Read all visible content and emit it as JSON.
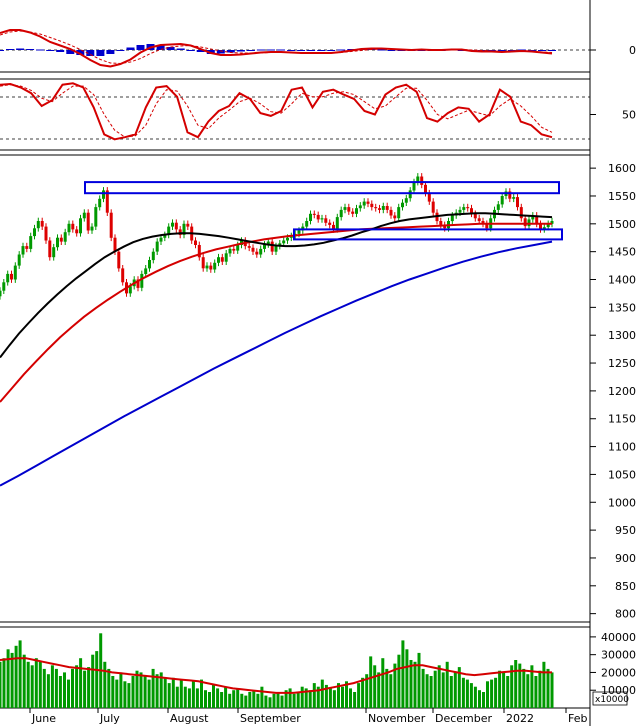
{
  "chart_data": [
    {
      "panel": "macd",
      "type": "line",
      "series": [
        {
          "role": "macd_line",
          "color": "#d40000"
        },
        {
          "role": "signal_line",
          "color": "#d40000",
          "dash": true
        },
        {
          "role": "histogram",
          "color": "#0000cc"
        }
      ],
      "ylim": [
        -40,
        40
      ],
      "reference_line": 0,
      "y_ticks": [
        "0"
      ],
      "macd_pts": [
        34,
        40,
        40,
        35,
        27,
        16,
        9,
        2,
        -8,
        -20,
        -30,
        -33,
        -28,
        -19,
        -5,
        5,
        10,
        11,
        12,
        9,
        2,
        -6,
        -10,
        -10,
        -9,
        -7,
        -5,
        -4,
        -4,
        -5,
        -6,
        -6,
        -6,
        -6,
        -4,
        -1,
        2,
        3,
        3,
        2,
        1,
        0,
        1,
        0,
        0,
        1,
        1,
        -2,
        -3,
        -3,
        -4,
        -3,
        -2,
        -3,
        -5,
        -7
      ],
      "signal_pts": [
        30,
        36,
        38,
        36,
        32,
        25,
        18,
        10,
        1,
        -9,
        -19,
        -26,
        -27,
        -24,
        -17,
        -7,
        1,
        6,
        8,
        9,
        6,
        2,
        -2,
        -5,
        -6,
        -6,
        -6,
        -5,
        -5,
        -5,
        -5,
        -6,
        -6,
        -6,
        -5,
        -3,
        -1,
        1,
        2,
        2,
        1,
        1,
        1,
        1,
        0,
        0,
        1,
        0,
        -1,
        -2,
        -3,
        -3,
        -3,
        -3,
        -4,
        -5
      ],
      "hist_pts": [
        0,
        2,
        3,
        2,
        1,
        -2,
        -4,
        -8,
        -10,
        -12,
        -12,
        -8,
        -2,
        5,
        10,
        12,
        10,
        6,
        3,
        -1,
        -4,
        -8,
        -7,
        -5,
        -3,
        -1,
        1,
        1,
        1,
        0,
        -1,
        0,
        0,
        -1,
        1,
        2,
        3,
        2,
        1,
        0,
        0,
        -1,
        0,
        -1,
        0,
        1,
        0,
        -2,
        -2,
        -1,
        -1,
        0,
        1,
        0,
        -1,
        -2
      ]
    },
    {
      "panel": "stochastic",
      "type": "line",
      "series": [
        {
          "role": "k_line",
          "color": "#d40000"
        },
        {
          "role": "d_line",
          "color": "#d40000",
          "dash": true
        }
      ],
      "ylim": [
        0,
        100
      ],
      "reference_lines": [
        20,
        80
      ],
      "y_ticks": [
        "50"
      ],
      "k_pts": [
        92,
        93,
        88,
        80,
        62,
        70,
        92,
        94,
        88,
        60,
        22,
        15,
        18,
        22,
        60,
        88,
        90,
        75,
        25,
        18,
        40,
        55,
        62,
        80,
        72,
        52,
        48,
        55,
        85,
        88,
        60,
        82,
        85,
        78,
        72,
        55,
        50,
        78,
        88,
        92,
        82,
        45,
        40,
        52,
        60,
        58,
        40,
        50,
        85,
        75,
        40,
        35,
        22,
        18
      ],
      "d_pts": [
        90,
        92,
        90,
        84,
        73,
        68,
        80,
        90,
        90,
        78,
        50,
        28,
        18,
        20,
        35,
        65,
        85,
        83,
        62,
        35,
        30,
        45,
        56,
        68,
        73,
        65,
        54,
        52,
        65,
        80,
        75,
        75,
        80,
        82,
        78,
        68,
        58,
        62,
        75,
        87,
        87,
        70,
        50,
        44,
        50,
        56,
        52,
        48,
        62,
        72,
        62,
        48,
        32,
        25
      ]
    },
    {
      "panel": "price",
      "type": "candlestick",
      "ylim": [
        785,
        1620
      ],
      "y_ticks": [
        800,
        850,
        900,
        950,
        1000,
        1050,
        1100,
        1150,
        1200,
        1250,
        1300,
        1350,
        1400,
        1450,
        1500,
        1550,
        1600
      ],
      "close": [
        1380,
        1395,
        1410,
        1400,
        1425,
        1445,
        1460,
        1455,
        1478,
        1492,
        1505,
        1495,
        1470,
        1440,
        1458,
        1475,
        1468,
        1485,
        1500,
        1490,
        1483,
        1510,
        1520,
        1488,
        1495,
        1530,
        1545,
        1560,
        1520,
        1475,
        1450,
        1420,
        1395,
        1375,
        1388,
        1400,
        1385,
        1410,
        1420,
        1435,
        1450,
        1468,
        1475,
        1480,
        1495,
        1502,
        1490,
        1480,
        1500,
        1495,
        1470,
        1462,
        1440,
        1420,
        1425,
        1418,
        1430,
        1440,
        1432,
        1447,
        1455,
        1452,
        1462,
        1470,
        1460,
        1457,
        1450,
        1445,
        1455,
        1463,
        1468,
        1450,
        1460,
        1465,
        1470,
        1475,
        1478,
        1482,
        1488,
        1495,
        1505,
        1518,
        1516,
        1508,
        1510,
        1502,
        1498,
        1490,
        1512,
        1525,
        1530,
        1522,
        1518,
        1528,
        1533,
        1540,
        1536,
        1530,
        1528,
        1525,
        1532,
        1525,
        1515,
        1510,
        1530,
        1538,
        1546,
        1560,
        1575,
        1585,
        1570,
        1555,
        1540,
        1520,
        1505,
        1498,
        1492,
        1505,
        1515,
        1520,
        1525,
        1530,
        1528,
        1518,
        1510,
        1505,
        1500,
        1492,
        1510,
        1525,
        1535,
        1550,
        1558,
        1545,
        1548,
        1530,
        1510,
        1496,
        1508,
        1515,
        1500,
        1490,
        1494,
        1500,
        1505
      ],
      "ma_black": [
        1260,
        1282,
        1303,
        1322,
        1340,
        1357,
        1373,
        1388,
        1402,
        1415,
        1428,
        1440,
        1450,
        1459,
        1467,
        1473,
        1477,
        1480,
        1482,
        1483,
        1483,
        1482,
        1480,
        1478,
        1475,
        1472,
        1469,
        1466,
        1463,
        1461,
        1460,
        1460,
        1461,
        1463,
        1466,
        1470,
        1474,
        1479,
        1485,
        1490,
        1496,
        1501,
        1505,
        1508,
        1510,
        1512,
        1514,
        1516,
        1517,
        1518,
        1519,
        1519,
        1518,
        1517,
        1516,
        1515,
        1514,
        1513,
        1512
      ],
      "ma_red": [
        1180,
        1205,
        1230,
        1253,
        1275,
        1296,
        1315,
        1333,
        1349,
        1364,
        1378,
        1391,
        1403,
        1414,
        1424,
        1433,
        1441,
        1448,
        1454,
        1459,
        1464,
        1468,
        1472,
        1475,
        1478,
        1480,
        1482,
        1484,
        1486,
        1488,
        1490,
        1491,
        1492,
        1493,
        1494,
        1495,
        1496,
        1497,
        1498,
        1499,
        1500,
        1500,
        1500,
        1500,
        1500,
        1500,
        1500
      ],
      "ma_blue": [
        1030,
        1047,
        1065,
        1083,
        1101,
        1119,
        1137,
        1155,
        1172,
        1189,
        1206,
        1223,
        1240,
        1256,
        1272,
        1288,
        1304,
        1319,
        1334,
        1348,
        1362,
        1375,
        1388,
        1400,
        1411,
        1422,
        1432,
        1441,
        1449,
        1456,
        1462,
        1468
      ],
      "resistance_zone": [
        1555,
        1575
      ],
      "support_zone": [
        1472,
        1490
      ]
    },
    {
      "panel": "volume",
      "type": "bar",
      "ylim": [
        0,
        45000
      ],
      "y_ticks": [
        "10000",
        "20000",
        "30000",
        "40000"
      ],
      "unit_label": "x10000",
      "volume": [
        26000,
        28000,
        33000,
        31000,
        35000,
        38000,
        30000,
        26000,
        24000,
        28000,
        26000,
        22000,
        19000,
        24000,
        22000,
        18000,
        20000,
        16000,
        22000,
        24000,
        28000,
        21000,
        23000,
        30000,
        32000,
        42000,
        26000,
        22000,
        18000,
        16000,
        20000,
        15000,
        14000,
        18000,
        21000,
        20000,
        18000,
        16000,
        22000,
        19000,
        20000,
        17000,
        14000,
        17000,
        12000,
        16000,
        12000,
        11000,
        15000,
        11000,
        16000,
        10000,
        9000,
        13000,
        11000,
        9000,
        12000,
        8000,
        10000,
        11000,
        8000,
        7000,
        9000,
        10000,
        8000,
        12000,
        7000,
        6000,
        8000,
        9000,
        7000,
        10000,
        11000,
        8000,
        9000,
        12000,
        11000,
        10000,
        14000,
        12000,
        16000,
        13000,
        11000,
        10000,
        14000,
        12000,
        15000,
        11000,
        9000,
        14000,
        17000,
        19000,
        29000,
        24000,
        20000,
        28000,
        22000,
        19000,
        25000,
        30000,
        38000,
        33000,
        27000,
        26000,
        31000,
        22000,
        19000,
        18000,
        21000,
        24000,
        20000,
        26000,
        18000,
        20000,
        23000,
        17000,
        16000,
        14000,
        12000,
        10000,
        9000,
        15000,
        16000,
        17000,
        21000,
        20000,
        18000,
        24000,
        27000,
        25000,
        22000,
        19000,
        24000,
        18000,
        21000,
        26000,
        22000,
        20000
      ],
      "vol_ma": [
        27000,
        27500,
        28000,
        28000,
        27000,
        26000,
        25000,
        24000,
        23000,
        22500,
        22000,
        21500,
        21000,
        20000,
        19500,
        19000,
        18500,
        18000,
        17500,
        17000,
        16500,
        16000,
        15500,
        15000,
        14000,
        13000,
        12000,
        11000,
        10500,
        10000,
        9500,
        9000,
        8500,
        8500,
        8500,
        9000,
        9500,
        10000,
        11000,
        12000,
        13000,
        14000,
        15500,
        17000,
        18500,
        20000,
        22000,
        23000,
        24000,
        24000,
        23000,
        22000,
        21000,
        20000,
        19000,
        18500,
        19000,
        19500,
        20000,
        20500,
        21000,
        21000,
        20500,
        20000,
        20000
      ]
    },
    {
      "panel": "x_axis",
      "type": "axis",
      "x_labels": [
        "June",
        "July",
        "August",
        "September",
        "November",
        "December",
        "2022",
        "Feb"
      ]
    }
  ]
}
